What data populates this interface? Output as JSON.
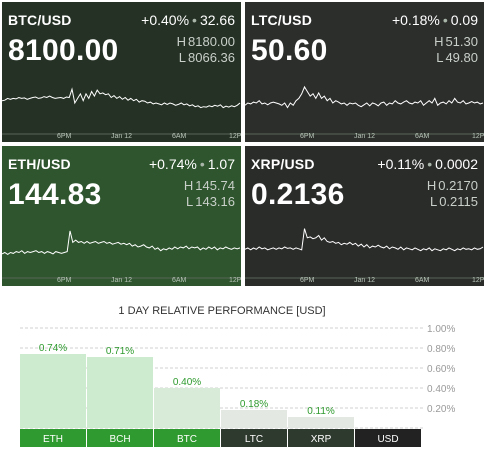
{
  "panels": [
    {
      "id": "btc",
      "pair": "BTC/USD",
      "change": "+0.40%",
      "abs_change": "32.66",
      "price": "8100.00",
      "high_label": "H",
      "high": "8180.00",
      "low_label": "L",
      "low": "8066.36",
      "bg": "#253125",
      "spark": [
        0.55,
        0.56,
        0.6,
        0.58,
        0.6,
        0.59,
        0.62,
        0.6,
        0.61,
        0.58,
        0.6,
        0.62,
        0.63,
        0.6,
        0.61,
        0.64,
        0.62,
        0.65,
        0.62,
        0.6,
        0.61,
        0.62,
        0.6,
        0.63,
        0.62,
        0.8,
        0.5,
        0.6,
        0.7,
        0.55,
        0.7,
        0.6,
        0.75,
        0.65,
        0.78,
        0.7,
        0.72,
        0.68,
        0.7,
        0.62,
        0.66,
        0.6,
        0.64,
        0.58,
        0.62,
        0.56,
        0.6,
        0.55,
        0.58,
        0.52,
        0.55,
        0.54,
        0.5,
        0.52,
        0.48,
        0.5,
        0.48,
        0.46,
        0.5,
        0.47,
        0.5,
        0.48,
        0.45,
        0.47,
        0.5,
        0.46,
        0.48,
        0.44,
        0.46,
        0.42,
        0.44,
        0.4,
        0.42,
        0.41,
        0.44,
        0.42,
        0.45,
        0.43,
        0.46,
        0.4,
        0.43,
        0.41,
        0.44,
        0.42,
        0.45,
        0.5
      ],
      "ticks": [
        "6PM",
        "Jan 12",
        "6AM",
        "12P"
      ]
    },
    {
      "id": "ltc",
      "pair": "LTC/USD",
      "change": "+0.18%",
      "abs_change": "0.09",
      "price": "50.60",
      "high_label": "H",
      "high": "51.30",
      "low_label": "L",
      "low": "49.80",
      "bg": "#2c2e2c",
      "spark": [
        0.45,
        0.5,
        0.48,
        0.52,
        0.5,
        0.55,
        0.48,
        0.5,
        0.46,
        0.5,
        0.52,
        0.5,
        0.48,
        0.45,
        0.5,
        0.4,
        0.5,
        0.45,
        0.55,
        0.6,
        0.7,
        0.85,
        0.75,
        0.65,
        0.7,
        0.6,
        0.72,
        0.6,
        0.65,
        0.55,
        0.6,
        0.5,
        0.55,
        0.52,
        0.48,
        0.5,
        0.45,
        0.5,
        0.48,
        0.5,
        0.45,
        0.42,
        0.46,
        0.5,
        0.44,
        0.5,
        0.48,
        0.44,
        0.5,
        0.52,
        0.45,
        0.5,
        0.48,
        0.55,
        0.5,
        0.48,
        0.52,
        0.55,
        0.5,
        0.48,
        0.52,
        0.5,
        0.55,
        0.45,
        0.5,
        0.55,
        0.5,
        0.6,
        0.45,
        0.5,
        0.52,
        0.48,
        0.55,
        0.5,
        0.6,
        0.52,
        0.5,
        0.55,
        0.48,
        0.5,
        0.53,
        0.5,
        0.52,
        0.48,
        0.5
      ],
      "ticks": [
        "6PM",
        "Jan 12",
        "6AM",
        "12P"
      ]
    },
    {
      "id": "eth",
      "pair": "ETH/USD",
      "change": "+0.74%",
      "abs_change": "1.07",
      "price": "144.83",
      "high_label": "H",
      "high": "145.74",
      "low_label": "L",
      "low": "143.16",
      "bg": "#2e552e",
      "spark": [
        0.35,
        0.38,
        0.34,
        0.38,
        0.36,
        0.4,
        0.38,
        0.42,
        0.36,
        0.4,
        0.38,
        0.4,
        0.42,
        0.38,
        0.4,
        0.36,
        0.4,
        0.38,
        0.35,
        0.4,
        0.38,
        0.36,
        0.38,
        0.4,
        0.85,
        0.6,
        0.65,
        0.6,
        0.62,
        0.58,
        0.62,
        0.58,
        0.6,
        0.62,
        0.58,
        0.6,
        0.62,
        0.58,
        0.6,
        0.56,
        0.58,
        0.6,
        0.56,
        0.58,
        0.55,
        0.58,
        0.52,
        0.55,
        0.5,
        0.52,
        0.55,
        0.5,
        0.48,
        0.52,
        0.45,
        0.48,
        0.42,
        0.46,
        0.44,
        0.48,
        0.45,
        0.5,
        0.46,
        0.5,
        0.48,
        0.52,
        0.46,
        0.5,
        0.48,
        0.5,
        0.44,
        0.48,
        0.45,
        0.5,
        0.46,
        0.5,
        0.44,
        0.48,
        0.46,
        0.5,
        0.47,
        0.45,
        0.48,
        0.46,
        0.48
      ],
      "ticks": [
        "6PM",
        "Jan 12",
        "6AM",
        "12P"
      ]
    },
    {
      "id": "xrp",
      "pair": "XRP/USD",
      "change": "+0.11%",
      "abs_change": "0.0002",
      "price": "0.2136",
      "high_label": "H",
      "high": "0.2170",
      "low_label": "L",
      "low": "0.2115",
      "bg": "#2a2c2a",
      "spark": [
        0.45,
        0.48,
        0.44,
        0.48,
        0.45,
        0.5,
        0.46,
        0.48,
        0.44,
        0.46,
        0.48,
        0.45,
        0.48,
        0.46,
        0.5,
        0.47,
        0.48,
        0.45,
        0.48,
        0.46,
        0.44,
        0.9,
        0.7,
        0.72,
        0.68,
        0.7,
        0.75,
        0.65,
        0.7,
        0.62,
        0.6,
        0.62,
        0.58,
        0.6,
        0.55,
        0.58,
        0.56,
        0.6,
        0.55,
        0.58,
        0.52,
        0.56,
        0.5,
        0.55,
        0.48,
        0.52,
        0.5,
        0.54,
        0.5,
        0.48,
        0.52,
        0.46,
        0.5,
        0.48,
        0.45,
        0.5,
        0.44,
        0.48,
        0.46,
        0.44,
        0.48,
        0.45,
        0.42,
        0.46,
        0.44,
        0.48,
        0.42,
        0.46,
        0.44,
        0.42,
        0.46,
        0.44,
        0.48,
        0.45,
        0.42,
        0.46,
        0.44,
        0.48,
        0.45,
        0.46,
        0.44,
        0.48,
        0.45,
        0.46,
        0.5
      ],
      "ticks": [
        "6PM",
        "Jan 12",
        "6AM",
        "12P"
      ]
    }
  ],
  "performance": {
    "title": "1 DAY RELATIVE PERFORMANCE  [USD]",
    "colors": {
      "bar_fill_strong": "#cdeccf",
      "bar_fill_mid": "#d8ead8",
      "bar_fill_light": "#e3e8e3",
      "label_green": "#2e9a2e",
      "cat_green": "#2f9a2f",
      "cat_dark": "#2f3a2f",
      "cat_black": "#222222"
    },
    "chart_data": {
      "type": "bar",
      "title": "1 DAY RELATIVE PERFORMANCE  [USD]",
      "categories": [
        "ETH",
        "BCH",
        "BTC",
        "LTC",
        "XRP",
        "USD"
      ],
      "values": [
        0.74,
        0.71,
        0.4,
        0.18,
        0.11,
        0.0
      ],
      "value_labels": [
        "0.74%",
        "0.71%",
        "0.40%",
        "0.18%",
        "0.11%",
        ""
      ],
      "yticks": [
        "1.00%",
        "0.80%",
        "0.60%",
        "0.40%",
        "0.20%"
      ],
      "ylim": [
        0,
        1.0
      ],
      "grid": true
    }
  }
}
